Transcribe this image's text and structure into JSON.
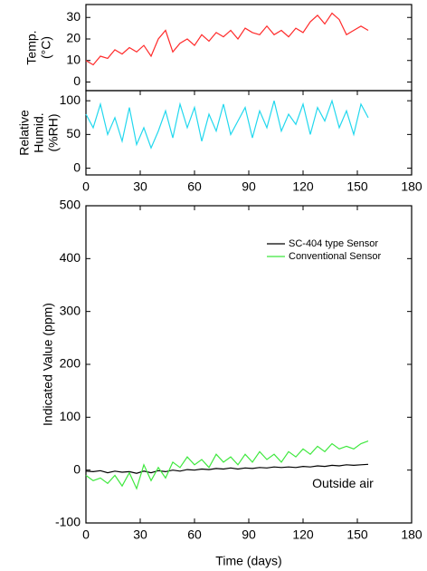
{
  "chart_data": [
    {
      "type": "line",
      "ylabel": [
        "Temp.",
        "(°C)"
      ],
      "x": [
        0,
        4,
        8,
        12,
        16,
        20,
        24,
        28,
        32,
        36,
        40,
        44,
        48,
        52,
        56,
        60,
        64,
        68,
        72,
        76,
        80,
        84,
        88,
        92,
        96,
        100,
        104,
        108,
        112,
        116,
        120,
        124,
        128,
        132,
        136,
        140,
        144,
        148,
        152,
        156
      ],
      "series": [
        {
          "name": "Temperature",
          "color": "#ff2a2a",
          "values": [
            10,
            8,
            12,
            11,
            15,
            13,
            16,
            14,
            17,
            12,
            20,
            24,
            14,
            18,
            20,
            17,
            22,
            19,
            23,
            21,
            24,
            20,
            25,
            23,
            22,
            26,
            22,
            24,
            21,
            25,
            23,
            28,
            31,
            27,
            32,
            29,
            22,
            24,
            26,
            24
          ]
        }
      ],
      "xlim": [
        0,
        180
      ],
      "ylim": [
        -4,
        36
      ],
      "yticks": [
        0,
        10,
        20,
        30
      ]
    },
    {
      "type": "line",
      "ylabel": [
        "Relative",
        "Humid.",
        "(%RH)"
      ],
      "x": [
        0,
        4,
        8,
        12,
        16,
        20,
        24,
        28,
        32,
        36,
        40,
        44,
        48,
        52,
        56,
        60,
        64,
        68,
        72,
        76,
        80,
        84,
        88,
        92,
        96,
        100,
        104,
        108,
        112,
        116,
        120,
        124,
        128,
        132,
        136,
        140,
        144,
        148,
        152,
        156
      ],
      "series": [
        {
          "name": "Relative Humidity",
          "color": "#22d8ee",
          "values": [
            80,
            60,
            95,
            50,
            75,
            40,
            90,
            35,
            60,
            30,
            55,
            85,
            45,
            95,
            60,
            90,
            40,
            80,
            55,
            95,
            50,
            70,
            90,
            45,
            85,
            60,
            100,
            55,
            80,
            65,
            95,
            50,
            90,
            70,
            100,
            60,
            85,
            50,
            95,
            75
          ]
        }
      ],
      "xlim": [
        0,
        180
      ],
      "ylim": [
        -10,
        115
      ],
      "yticks": [
        0,
        50,
        100
      ],
      "xticks": [
        0,
        30,
        60,
        90,
        120,
        150,
        180
      ]
    },
    {
      "type": "line",
      "ylabel": [
        "Indicated Value (ppm)"
      ],
      "xlabel": "Time (days)",
      "annotation": "Outside air",
      "legend": "upper right",
      "x": [
        0,
        4,
        8,
        12,
        16,
        20,
        24,
        28,
        32,
        36,
        40,
        44,
        48,
        52,
        56,
        60,
        64,
        68,
        72,
        76,
        80,
        84,
        88,
        92,
        96,
        100,
        104,
        108,
        112,
        116,
        120,
        124,
        128,
        132,
        136,
        140,
        144,
        148,
        152,
        156
      ],
      "series": [
        {
          "name": "SC-404 type Sensor",
          "color": "#000000",
          "values": [
            -2,
            -3,
            -1,
            -5,
            -2,
            -4,
            -3,
            -6,
            -2,
            -5,
            -1,
            -3,
            0,
            -2,
            1,
            0,
            2,
            1,
            3,
            2,
            4,
            2,
            4,
            3,
            5,
            4,
            6,
            5,
            6,
            5,
            7,
            6,
            8,
            7,
            9,
            8,
            10,
            9,
            10,
            11
          ]
        },
        {
          "name": "Conventional Sensor",
          "color": "#3fe83f",
          "values": [
            -10,
            -20,
            -15,
            -25,
            -10,
            -30,
            -5,
            -35,
            10,
            -20,
            5,
            -15,
            15,
            5,
            25,
            10,
            20,
            5,
            30,
            15,
            25,
            10,
            30,
            15,
            35,
            20,
            30,
            15,
            35,
            25,
            40,
            30,
            45,
            35,
            50,
            40,
            45,
            40,
            50,
            55
          ]
        }
      ],
      "xlim": [
        0,
        180
      ],
      "ylim": [
        -100,
        500
      ],
      "yticks": [
        -100,
        0,
        100,
        200,
        300,
        400,
        500
      ],
      "xticks": [
        0,
        30,
        60,
        90,
        120,
        150,
        180
      ]
    }
  ]
}
